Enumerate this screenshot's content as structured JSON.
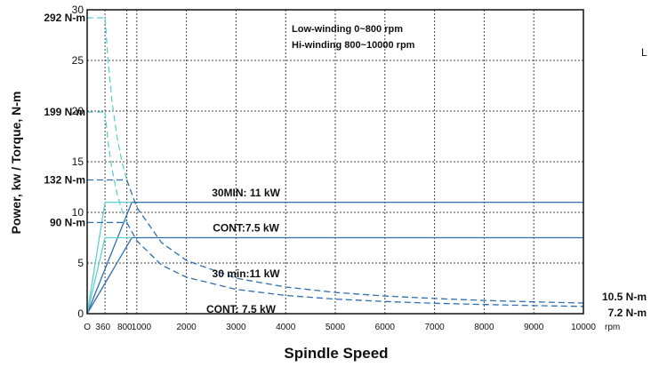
{
  "chart_data": {
    "type": "line",
    "xlabel": "Spindle Speed",
    "xunit": "rpm",
    "ylabel": "Power, kw / Torque, N-m",
    "xlim": [
      0,
      10000
    ],
    "ylim": [
      0,
      30
    ],
    "x_ticks": [
      {
        "value": 0,
        "label": "O"
      },
      {
        "value": 360,
        "label": "360"
      },
      {
        "value": 800,
        "label": "800"
      },
      {
        "value": 1000,
        "label": "1000"
      },
      {
        "value": 2000,
        "label": "2000"
      },
      {
        "value": 3000,
        "label": "3000"
      },
      {
        "value": 4000,
        "label": "4000"
      },
      {
        "value": 5000,
        "label": "5000"
      },
      {
        "value": 6000,
        "label": "6000"
      },
      {
        "value": 7000,
        "label": "7000"
      },
      {
        "value": 8000,
        "label": "8000"
      },
      {
        "value": 9000,
        "label": "9000"
      },
      {
        "value": 10000,
        "label": "10000"
      }
    ],
    "y_ticks": [
      0,
      5,
      10,
      15,
      20,
      25,
      30
    ],
    "grid": true,
    "legend_text": [
      "Low-winding 0~800 rpm",
      "Hi-winding 800~10000 rpm"
    ],
    "torque_labels_left": [
      {
        "text": "292 N-m",
        "y": 29.2
      },
      {
        "text": "199 N-m",
        "y": 19.9
      },
      {
        "text": "132 N-m",
        "y": 13.2
      },
      {
        "text": "90 N-m",
        "y": 9.0
      }
    ],
    "torque_labels_right": [
      {
        "text": "10.5 N-m",
        "y": 1.05
      },
      {
        "text": "7.2 N-m",
        "y": 0.72
      }
    ],
    "annotations": [
      {
        "text": "30MIN: 11 kW",
        "x": 3200,
        "y": 11.6
      },
      {
        "text": "CONT:7.5 kW",
        "x": 3200,
        "y": 8.1
      },
      {
        "text": "30 min:11 kW",
        "x": 3200,
        "y": 3.6
      },
      {
        "text": "CONT: 7.5 kW",
        "x": 3100,
        "y": 0.1
      }
    ],
    "series": [
      {
        "style": "solid",
        "color": "#2f6fb0",
        "x": [
          0,
          900,
          10000
        ],
        "y": [
          0,
          11,
          11
        ]
      },
      {
        "style": "solid",
        "color": "#2f6fb0",
        "x": [
          0,
          900,
          10000
        ],
        "y": [
          0,
          7.5,
          7.5
        ]
      },
      {
        "style": "solid",
        "color": "#5ed0d0",
        "x": [
          0,
          360,
          900
        ],
        "y": [
          0,
          11,
          11
        ]
      },
      {
        "style": "solid",
        "color": "#5ed0d0",
        "x": [
          0,
          360,
          900
        ],
        "y": [
          0,
          7.5,
          7.5
        ]
      },
      {
        "style": "dashed",
        "color": "#5ed0d0",
        "x": [
          0,
          360
        ],
        "y": [
          29.2,
          29.2
        ]
      },
      {
        "style": "dashed",
        "color": "#5ed0d0",
        "x": [
          0,
          360
        ],
        "y": [
          19.9,
          19.9
        ]
      },
      {
        "style": "dashed",
        "color": "#2f6fb0",
        "x": [
          0,
          800
        ],
        "y": [
          13.2,
          13.2
        ]
      },
      {
        "style": "dashed",
        "color": "#2f6fb0",
        "x": [
          0,
          800
        ],
        "y": [
          9.0,
          9.0
        ]
      },
      {
        "style": "dashed",
        "color": "#5ed0d0",
        "x": [
          360,
          425,
          500,
          600,
          700,
          800
        ],
        "y": [
          29.2,
          24.7,
          21.0,
          17.5,
          15.0,
          13.2
        ]
      },
      {
        "style": "dashed",
        "color": "#5ed0d0",
        "x": [
          360,
          425,
          500,
          600,
          700,
          800
        ],
        "y": [
          19.9,
          16.8,
          14.3,
          11.9,
          10.2,
          9.0
        ]
      },
      {
        "style": "dashed",
        "color": "#2f6fb0",
        "x": [
          800,
          1000,
          1500,
          2000,
          3000,
          4000,
          5000,
          6000,
          7000,
          8000,
          9000,
          10000
        ],
        "y": [
          13.2,
          10.5,
          7.0,
          5.25,
          3.5,
          2.63,
          2.1,
          1.75,
          1.5,
          1.31,
          1.17,
          1.05
        ]
      },
      {
        "style": "dashed",
        "color": "#2f6fb0",
        "x": [
          800,
          1000,
          1500,
          2000,
          3000,
          4000,
          5000,
          6000,
          7000,
          8000,
          9000,
          10000
        ],
        "y": [
          9.0,
          7.2,
          4.8,
          3.6,
          2.4,
          1.8,
          1.44,
          1.2,
          1.03,
          0.9,
          0.8,
          0.72
        ]
      }
    ]
  },
  "side_text": "L"
}
